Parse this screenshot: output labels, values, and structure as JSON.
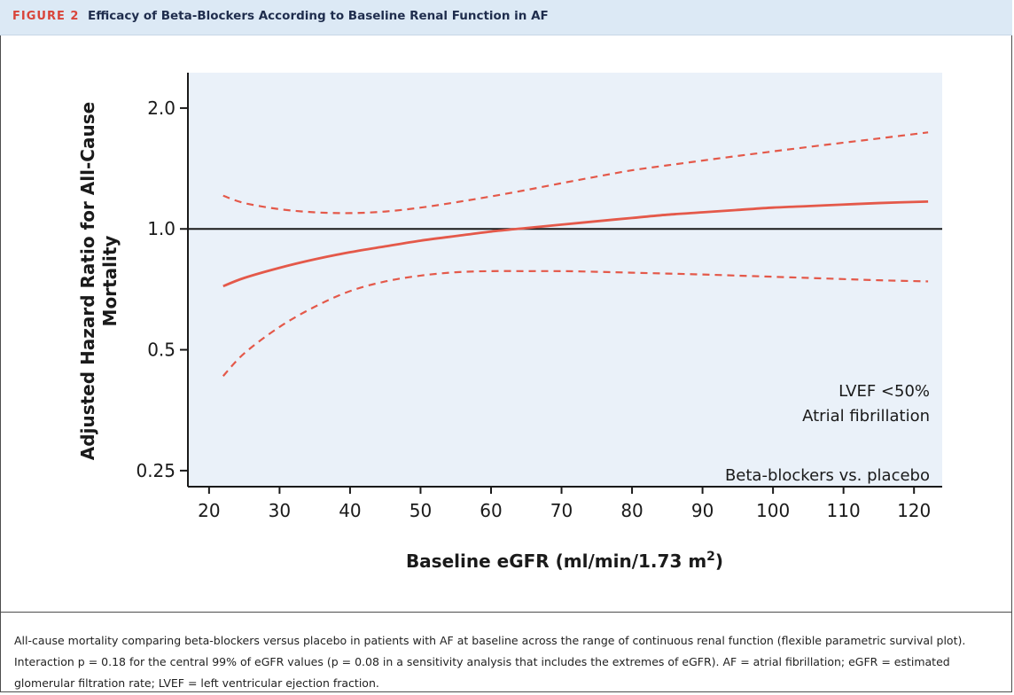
{
  "figure": {
    "label": "FIGURE 2",
    "title": "Efficacy of Beta-Blockers According to Baseline Renal Function in AF"
  },
  "caption": "All-cause mortality comparing beta-blockers versus placebo in patients with AF at baseline across the range of continuous renal function (flexible parametric survival plot). Interaction p = 0.18 for the central 99% of eGFR values (p = 0.08 in a sensitivity analysis that includes the extremes of eGFR). AF = atrial fibrillation; eGFR = estimated glomerular filtration rate; LVEF = left ventricular ejection fraction.",
  "chart_data": {
    "type": "line",
    "xlabel_main": "Baseline eGFR (ml/min/1.73 m",
    "xlabel_sup": "2",
    "xlabel_tail": ")",
    "ylabel_line1": "Adjusted Hazard Ratio for All-Cause",
    "ylabel_line2": "Mortality",
    "x_ticks": [
      20,
      30,
      40,
      50,
      60,
      70,
      80,
      90,
      100,
      110,
      120
    ],
    "y_ticks": [
      0.25,
      0.5,
      1.0,
      2.0
    ],
    "y_tick_labels": [
      "0.25",
      "0.5",
      "1.0",
      "2.0"
    ],
    "xlim": [
      17,
      124
    ],
    "ylim": [
      0.228,
      2.45
    ],
    "y_scale": "log2",
    "reference_line": 1.0,
    "annotations": [
      "LVEF <50%",
      "Atrial fibrillation",
      "Beta-blockers vs. placebo"
    ],
    "colors": {
      "series": "#e4594a",
      "background": "#eaf1f9",
      "axis": "#1a1a1a"
    },
    "series": [
      {
        "role": "estimate",
        "style": "solid",
        "x": [
          22,
          25,
          30,
          35,
          40,
          45,
          50,
          55,
          60,
          65,
          70,
          75,
          80,
          85,
          90,
          95,
          100,
          105,
          110,
          115,
          122
        ],
        "y": [
          0.72,
          0.755,
          0.8,
          0.84,
          0.875,
          0.905,
          0.935,
          0.96,
          0.985,
          1.005,
          1.025,
          1.045,
          1.065,
          1.085,
          1.1,
          1.115,
          1.13,
          1.14,
          1.15,
          1.16,
          1.17
        ]
      },
      {
        "role": "upper 95% CI",
        "style": "dashed",
        "x": [
          22,
          25,
          30,
          35,
          40,
          45,
          50,
          55,
          60,
          65,
          70,
          75,
          80,
          85,
          90,
          95,
          100,
          105,
          110,
          115,
          122
        ],
        "y": [
          1.21,
          1.16,
          1.12,
          1.1,
          1.095,
          1.105,
          1.13,
          1.165,
          1.205,
          1.25,
          1.3,
          1.35,
          1.4,
          1.44,
          1.48,
          1.52,
          1.56,
          1.6,
          1.64,
          1.68,
          1.74
        ]
      },
      {
        "role": "lower 95% CI",
        "style": "dashed",
        "x": [
          22,
          25,
          30,
          35,
          40,
          45,
          50,
          55,
          60,
          65,
          70,
          75,
          80,
          85,
          90,
          95,
          100,
          105,
          110,
          115,
          122
        ],
        "y": [
          0.43,
          0.49,
          0.57,
          0.64,
          0.7,
          0.74,
          0.765,
          0.78,
          0.785,
          0.785,
          0.785,
          0.782,
          0.778,
          0.774,
          0.77,
          0.765,
          0.76,
          0.755,
          0.75,
          0.745,
          0.74
        ]
      }
    ]
  }
}
